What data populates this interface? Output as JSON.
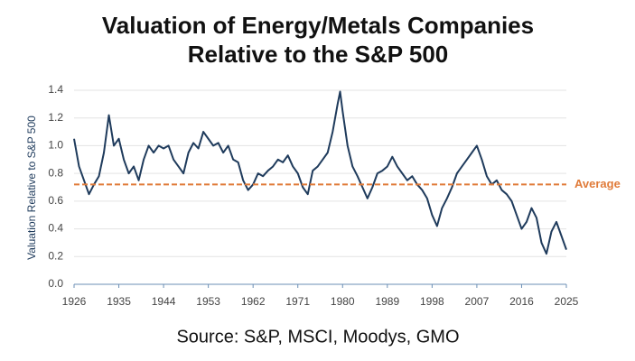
{
  "chart_data": {
    "type": "line",
    "title": [
      "Valuation of Energy/Metals Companies",
      "Relative to the S&P 500"
    ],
    "source": "Source: S&P, MSCI, Moodys, GMO",
    "y_label": "Valuation Relative to S&P 500",
    "x": [
      1926,
      1927,
      1928,
      1929,
      1930,
      1931,
      1932,
      1933,
      1934,
      1935,
      1936,
      1937,
      1938,
      1939,
      1940,
      1941,
      1942,
      1943,
      1944,
      1945,
      1946,
      1947,
      1948,
      1949,
      1950,
      1951,
      1952,
      1953,
      1954,
      1955,
      1956,
      1957,
      1958,
      1959,
      1960,
      1961,
      1962,
      1963,
      1964,
      1965,
      1966,
      1967,
      1968,
      1969,
      1970,
      1971,
      1972,
      1973,
      1974,
      1975,
      1976,
      1977,
      1978,
      1979,
      1979.5,
      1980,
      1981,
      1982,
      1983,
      1984,
      1985,
      1986,
      1987,
      1988,
      1989,
      1990,
      1991,
      1992,
      1993,
      1994,
      1995,
      1996,
      1997,
      1998,
      1999,
      2000,
      2001,
      2002,
      2003,
      2004,
      2005,
      2006,
      2007,
      2008,
      2009,
      2010,
      2011,
      2012,
      2013,
      2014,
      2015,
      2016,
      2017,
      2018,
      2019,
      2020,
      2021,
      2022,
      2023,
      2024,
      2025
    ],
    "series": [
      {
        "name": "Valuation",
        "color": "#1f3b5c",
        "values": [
          1.05,
          0.85,
          0.75,
          0.65,
          0.72,
          0.78,
          0.95,
          1.22,
          1.0,
          1.05,
          0.9,
          0.8,
          0.85,
          0.75,
          0.9,
          1.0,
          0.95,
          1.0,
          0.98,
          1.0,
          0.9,
          0.85,
          0.8,
          0.95,
          1.02,
          0.98,
          1.1,
          1.05,
          1.0,
          1.02,
          0.95,
          1.0,
          0.9,
          0.88,
          0.75,
          0.68,
          0.72,
          0.8,
          0.78,
          0.82,
          0.85,
          0.9,
          0.88,
          0.93,
          0.85,
          0.8,
          0.7,
          0.65,
          0.82,
          0.85,
          0.9,
          0.95,
          1.1,
          1.3,
          1.39,
          1.25,
          1.0,
          0.85,
          0.78,
          0.7,
          0.62,
          0.7,
          0.8,
          0.82,
          0.85,
          0.92,
          0.85,
          0.8,
          0.75,
          0.78,
          0.72,
          0.68,
          0.62,
          0.5,
          0.42,
          0.55,
          0.62,
          0.7,
          0.8,
          0.85,
          0.9,
          0.95,
          1.0,
          0.9,
          0.78,
          0.72,
          0.75,
          0.68,
          0.65,
          0.6,
          0.5,
          0.4,
          0.45,
          0.55,
          0.48,
          0.3,
          0.22,
          0.38,
          0.45,
          0.35,
          0.25
        ]
      }
    ],
    "average_line": {
      "value": 0.72,
      "label": "Average",
      "color": "#e07b39"
    },
    "xlim": [
      1926,
      2025
    ],
    "xticks": [
      1926,
      1935,
      1944,
      1953,
      1962,
      1971,
      1980,
      1989,
      1998,
      2007,
      2016,
      2025
    ],
    "ylim": [
      0,
      1.4
    ],
    "yticks": [
      {
        "value": 0,
        "label": "0.0"
      },
      0.2,
      0.4,
      0.6,
      0.8,
      {
        "value": 1,
        "label": "1.0"
      },
      1.2,
      1.4
    ],
    "grid": true
  }
}
